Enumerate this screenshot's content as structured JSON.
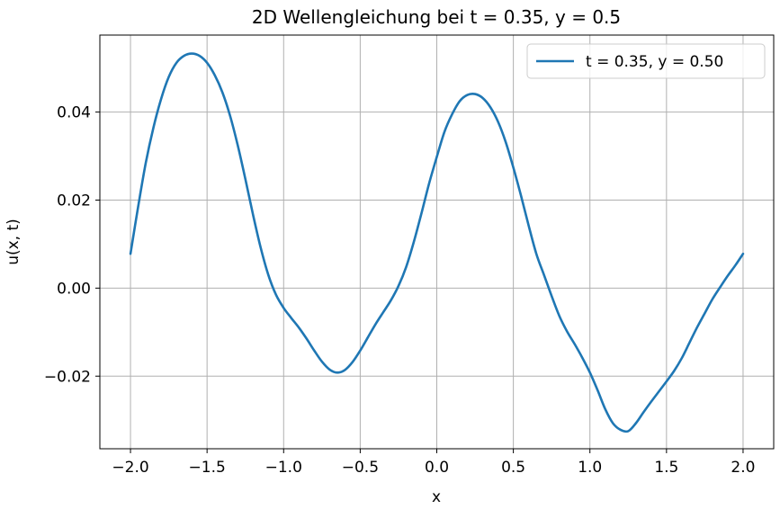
{
  "chart_data": {
    "type": "line",
    "title": "2D Wellengleichung bei t = 0.35, y = 0.5",
    "xlabel": "x",
    "ylabel": "u(x, t)",
    "xlim": [
      -2.2,
      2.2
    ],
    "ylim": [
      -0.0365,
      0.0575
    ],
    "grid": true,
    "legend_position": "top-right",
    "x_ticks": [
      -2.0,
      -1.5,
      -1.0,
      -0.5,
      0.0,
      0.5,
      1.0,
      1.5,
      2.0
    ],
    "x_tick_labels": [
      "−2.0",
      "−1.5",
      "−1.0",
      "−0.5",
      "0.0",
      "0.5",
      "1.0",
      "1.5",
      "2.0"
    ],
    "y_ticks": [
      -0.02,
      0.0,
      0.02,
      0.04
    ],
    "y_tick_labels": [
      "−0.02",
      "0.00",
      "0.02",
      "0.04"
    ],
    "series": [
      {
        "name": "t = 0.35, y = 0.50",
        "color": "#1f77b4",
        "x": [
          -2.0,
          -1.95,
          -1.9,
          -1.85,
          -1.8,
          -1.75,
          -1.7,
          -1.65,
          -1.6,
          -1.55,
          -1.5,
          -1.45,
          -1.4,
          -1.35,
          -1.3,
          -1.25,
          -1.2,
          -1.15,
          -1.1,
          -1.05,
          -1.0,
          -0.95,
          -0.9,
          -0.85,
          -0.8,
          -0.75,
          -0.7,
          -0.65,
          -0.6,
          -0.55,
          -0.5,
          -0.45,
          -0.4,
          -0.35,
          -0.3,
          -0.25,
          -0.2,
          -0.15,
          -0.1,
          -0.05,
          0.0,
          0.05,
          0.1,
          0.15,
          0.2,
          0.25,
          0.3,
          0.35,
          0.4,
          0.45,
          0.5,
          0.55,
          0.6,
          0.65,
          0.7,
          0.75,
          0.8,
          0.85,
          0.9,
          0.95,
          1.0,
          1.05,
          1.1,
          1.15,
          1.2,
          1.25,
          1.3,
          1.35,
          1.4,
          1.45,
          1.5,
          1.55,
          1.6,
          1.65,
          1.7,
          1.75,
          1.8,
          1.85,
          1.9,
          1.95,
          2.0
        ],
        "values": [
          0.0078,
          0.0185,
          0.0285,
          0.0365,
          0.043,
          0.048,
          0.0512,
          0.0528,
          0.0533,
          0.0528,
          0.0512,
          0.0484,
          0.0445,
          0.0392,
          0.0325,
          0.0248,
          0.0167,
          0.0092,
          0.003,
          -0.0015,
          -0.0045,
          -0.0068,
          -0.009,
          -0.0115,
          -0.0142,
          -0.0167,
          -0.0185,
          -0.0192,
          -0.0186,
          -0.0168,
          -0.0142,
          -0.0112,
          -0.0082,
          -0.0055,
          -0.0028,
          0.0005,
          0.0048,
          0.0105,
          0.017,
          0.0238,
          0.0298,
          0.0355,
          0.0395,
          0.0425,
          0.0439,
          0.0441,
          0.0432,
          0.0411,
          0.0378,
          0.0332,
          0.0274,
          0.021,
          0.0142,
          0.0078,
          0.003,
          -0.0018,
          -0.0063,
          -0.0098,
          -0.0127,
          -0.0158,
          -0.0192,
          -0.0232,
          -0.0275,
          -0.0307,
          -0.0322,
          -0.0325,
          -0.0307,
          -0.0282,
          -0.0258,
          -0.0235,
          -0.0212,
          -0.0188,
          -0.0159,
          -0.0124,
          -0.0089,
          -0.0057,
          -0.0025,
          0.0002,
          0.0028,
          0.0052,
          0.0078
        ]
      }
    ]
  }
}
